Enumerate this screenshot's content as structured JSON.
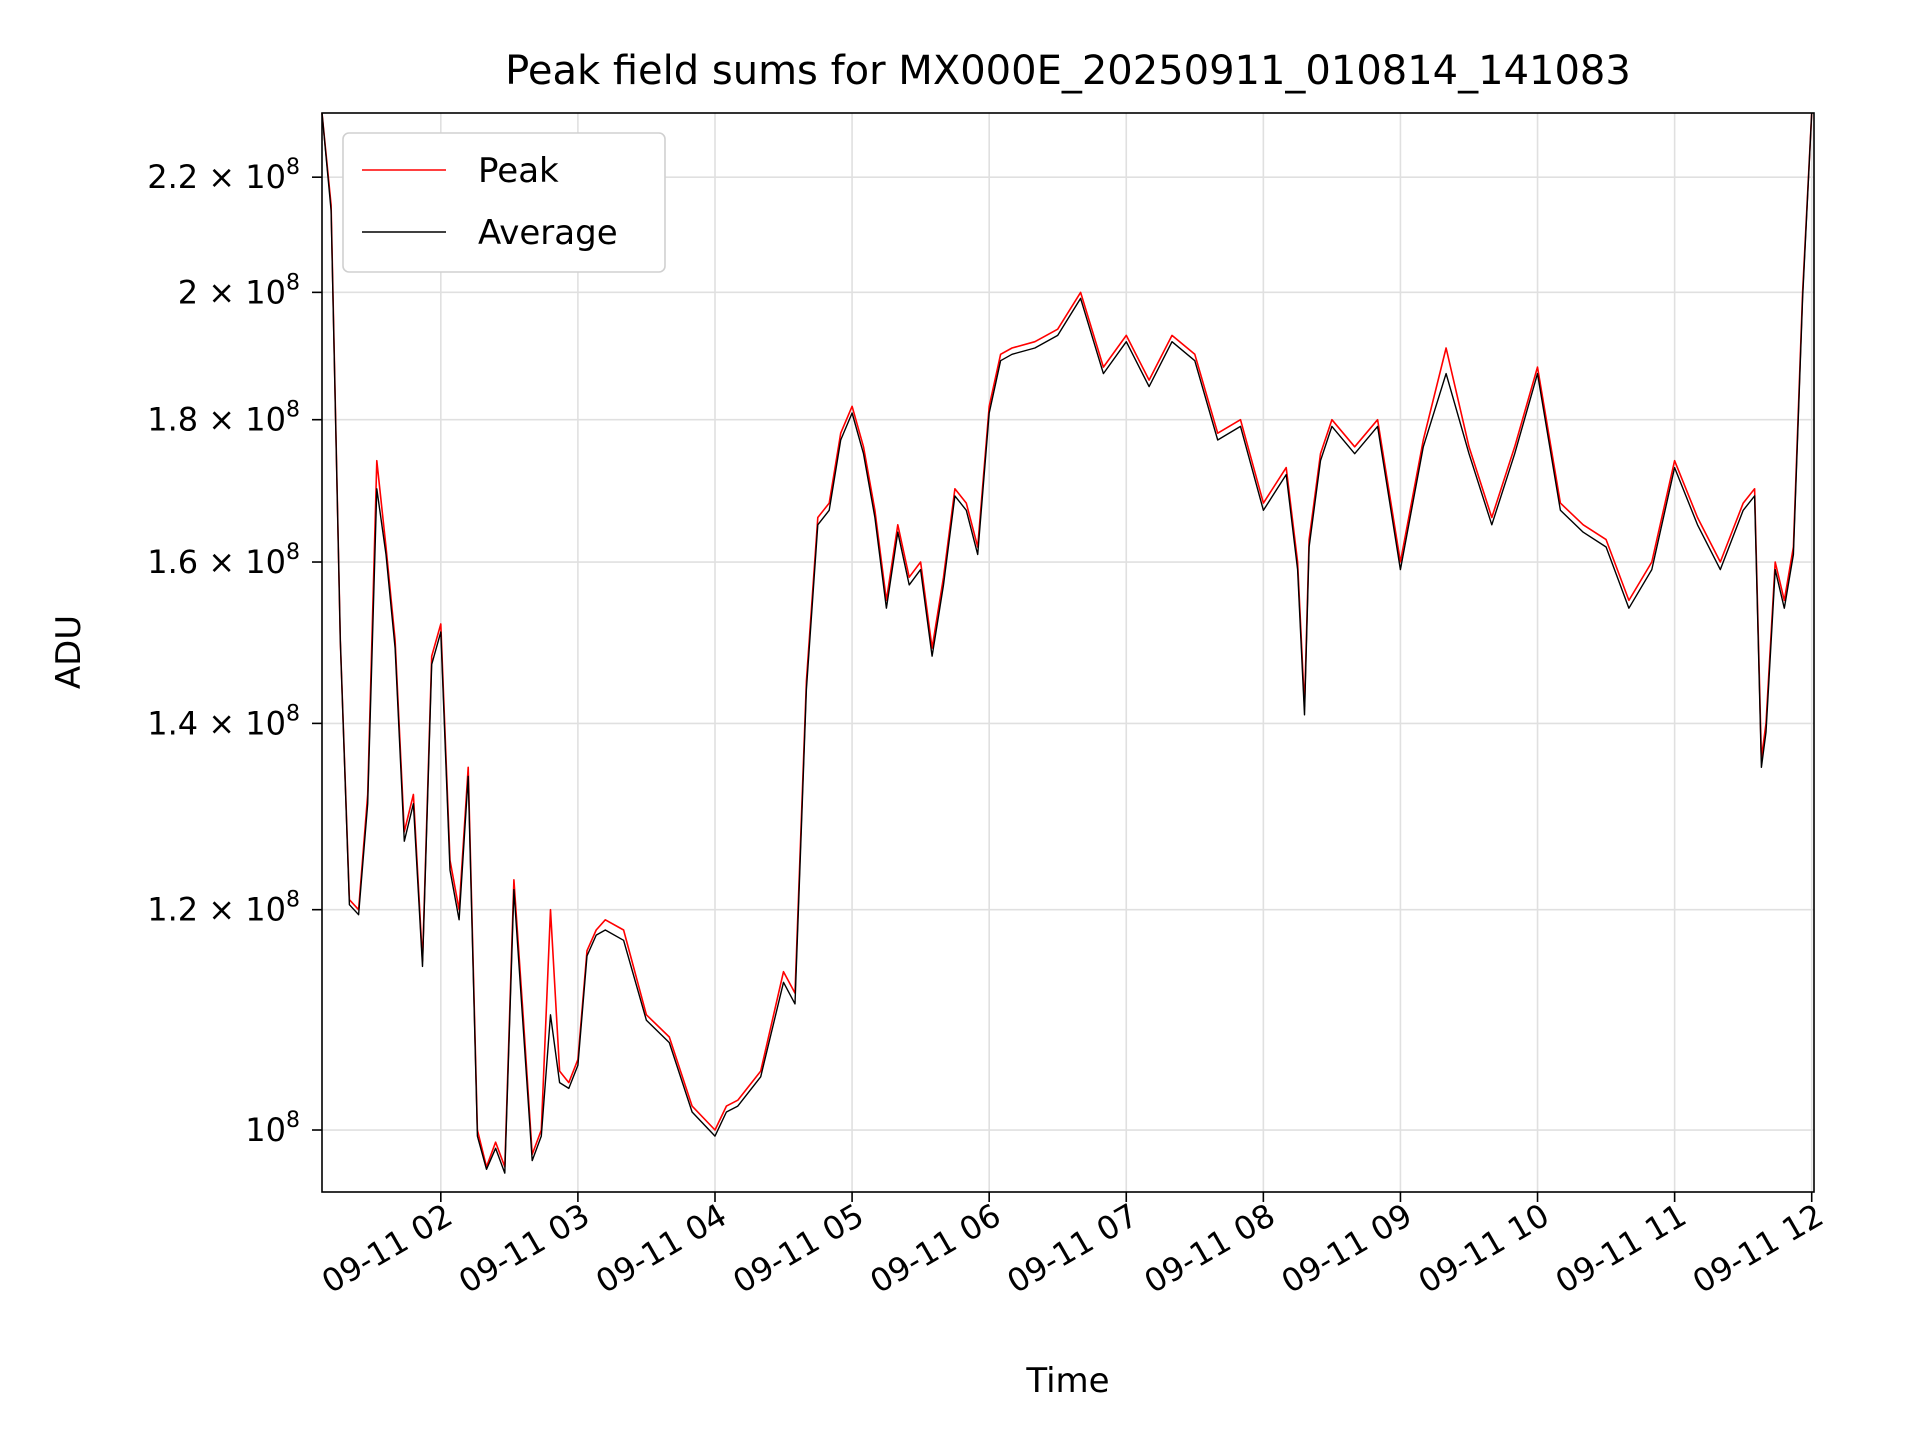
{
  "chart_data": {
    "type": "line",
    "title": "Peak field sums for MX000E_20250911_010814_141083",
    "xlabel": "Time",
    "ylabel": "ADU",
    "xlim": [
      "2025-09-11 01:08",
      "2025-09-11 12:01"
    ],
    "ylim": [
      95000000,
      232000000
    ],
    "yscale": "log",
    "grid": true,
    "legend": "top-left",
    "x_ticks": [
      "09-11 02",
      "09-11 03",
      "09-11 04",
      "09-11 05",
      "09-11 06",
      "09-11 07",
      "09-11 08",
      "09-11 09",
      "09-11 10",
      "09-11 11",
      "09-11 12"
    ],
    "y_ticks": [
      {
        "value": 100000000,
        "label": "10^8"
      },
      {
        "value": 120000000,
        "label": "1.2 × 10^8"
      },
      {
        "value": 140000000,
        "label": "1.4 × 10^8"
      },
      {
        "value": 160000000,
        "label": "1.6 × 10^8"
      },
      {
        "value": 180000000,
        "label": "1.8 × 10^8"
      },
      {
        "value": 200000000,
        "label": "2 × 10^8"
      },
      {
        "value": 220000000,
        "label": "2.2 × 10^8"
      }
    ],
    "x": [
      "01:08",
      "01:12",
      "01:16",
      "01:20",
      "01:24",
      "01:28",
      "01:32",
      "01:36",
      "01:40",
      "01:44",
      "01:48",
      "01:52",
      "01:56",
      "02:00",
      "02:04",
      "02:08",
      "02:12",
      "02:16",
      "02:20",
      "02:24",
      "02:28",
      "02:32",
      "02:36",
      "02:40",
      "02:44",
      "02:48",
      "02:52",
      "02:56",
      "03:00",
      "03:04",
      "03:08",
      "03:12",
      "03:20",
      "03:30",
      "03:40",
      "03:50",
      "04:00",
      "04:05",
      "04:10",
      "04:20",
      "04:30",
      "04:35",
      "04:40",
      "04:45",
      "04:50",
      "04:55",
      "05:00",
      "05:05",
      "05:10",
      "05:15",
      "05:20",
      "05:25",
      "05:30",
      "05:35",
      "05:40",
      "05:45",
      "05:50",
      "05:55",
      "06:00",
      "06:05",
      "06:10",
      "06:20",
      "06:30",
      "06:40",
      "06:50",
      "07:00",
      "07:10",
      "07:20",
      "07:30",
      "07:40",
      "07:50",
      "08:00",
      "08:10",
      "08:15",
      "08:18",
      "08:20",
      "08:25",
      "08:30",
      "08:40",
      "08:50",
      "09:00",
      "09:10",
      "09:20",
      "09:30",
      "09:40",
      "09:50",
      "10:00",
      "10:10",
      "10:20",
      "10:30",
      "10:40",
      "10:50",
      "11:00",
      "11:10",
      "11:20",
      "11:30",
      "11:35",
      "11:38",
      "11:40",
      "11:44",
      "11:48",
      "11:52",
      "11:56",
      "12:00"
    ],
    "series": [
      {
        "name": "Peak",
        "color": "#ff0000",
        "values": [
          232000000,
          215000000,
          150000000,
          121000000,
          120000000,
          132000000,
          174000000,
          162000000,
          150000000,
          128000000,
          132000000,
          115000000,
          148000000,
          152000000,
          125000000,
          120000000,
          135000000,
          100000000,
          97000000,
          99000000,
          97000000,
          123000000,
          110000000,
          98000000,
          100000000,
          120000000,
          105000000,
          104000000,
          106000000,
          116000000,
          118000000,
          119000000,
          118000000,
          110000000,
          108000000,
          102000000,
          100000000,
          102000000,
          102500000,
          105000000,
          114000000,
          112000000,
          145000000,
          166000000,
          168000000,
          178000000,
          182000000,
          176000000,
          167000000,
          155000000,
          165000000,
          158000000,
          160000000,
          149000000,
          158000000,
          170000000,
          168000000,
          162000000,
          182000000,
          190000000,
          191000000,
          192000000,
          194000000,
          200000000,
          188000000,
          193000000,
          186000000,
          193000000,
          190000000,
          178000000,
          180000000,
          168000000,
          173000000,
          160000000,
          142000000,
          163000000,
          175000000,
          180000000,
          176000000,
          180000000,
          160000000,
          177000000,
          191000000,
          176000000,
          166000000,
          176000000,
          188000000,
          168000000,
          165000000,
          163000000,
          155000000,
          160000000,
          174000000,
          166000000,
          160000000,
          168000000,
          170000000,
          136000000,
          140000000,
          160000000,
          155000000,
          162000000,
          200000000,
          232000000
        ]
      },
      {
        "name": "Average",
        "color": "#000000",
        "values": [
          232000000,
          214000000,
          150000000,
          120500000,
          119500000,
          131000000,
          170000000,
          161000000,
          149000000,
          127000000,
          131000000,
          114500000,
          147000000,
          151000000,
          124000000,
          119000000,
          134000000,
          99500000,
          96800000,
          98500000,
          96500000,
          122000000,
          109000000,
          97500000,
          99500000,
          110000000,
          104000000,
          103500000,
          105500000,
          115500000,
          117500000,
          118000000,
          117000000,
          109500000,
          107500000,
          101500000,
          99500000,
          101500000,
          102000000,
          104500000,
          113000000,
          111000000,
          144000000,
          165000000,
          167000000,
          177000000,
          181000000,
          175000000,
          166000000,
          154000000,
          164000000,
          157000000,
          159000000,
          148000000,
          157000000,
          169000000,
          167000000,
          161000000,
          181000000,
          189000000,
          190000000,
          191000000,
          193000000,
          199000000,
          187000000,
          192000000,
          185000000,
          192000000,
          189000000,
          177000000,
          179000000,
          167000000,
          172000000,
          159000000,
          141000000,
          162000000,
          174000000,
          179000000,
          175000000,
          179000000,
          159000000,
          176000000,
          187000000,
          175000000,
          165000000,
          175000000,
          187000000,
          167000000,
          164000000,
          162000000,
          154000000,
          159000000,
          173000000,
          165000000,
          159000000,
          167000000,
          169000000,
          135000000,
          139000000,
          159000000,
          154000000,
          161000000,
          199000000,
          232000000
        ]
      }
    ]
  }
}
